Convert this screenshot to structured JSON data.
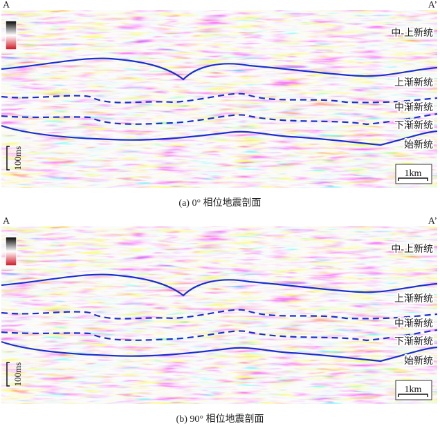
{
  "panels": [
    {
      "left_label": "A",
      "right_label": "A’",
      "colorbar": {
        "top": "+",
        "bottom": "-"
      },
      "formations": [
        "中-上新统",
        "上渐新统",
        "中渐新统",
        "下渐新统",
        "始新统"
      ],
      "time_scale": "100ms",
      "distance_scale": "1km",
      "caption": "(a) 0° 相位地震剖面"
    },
    {
      "left_label": "A",
      "right_label": "A’",
      "colorbar": {
        "top": "+",
        "bottom": "-"
      },
      "formations": [
        "中-上新统",
        "上渐新统",
        "中渐新统",
        "下渐新统",
        "始新统"
      ],
      "time_scale": "100ms",
      "distance_scale": "1km",
      "caption": "(b) 90° 相位地震剖面"
    }
  ]
}
